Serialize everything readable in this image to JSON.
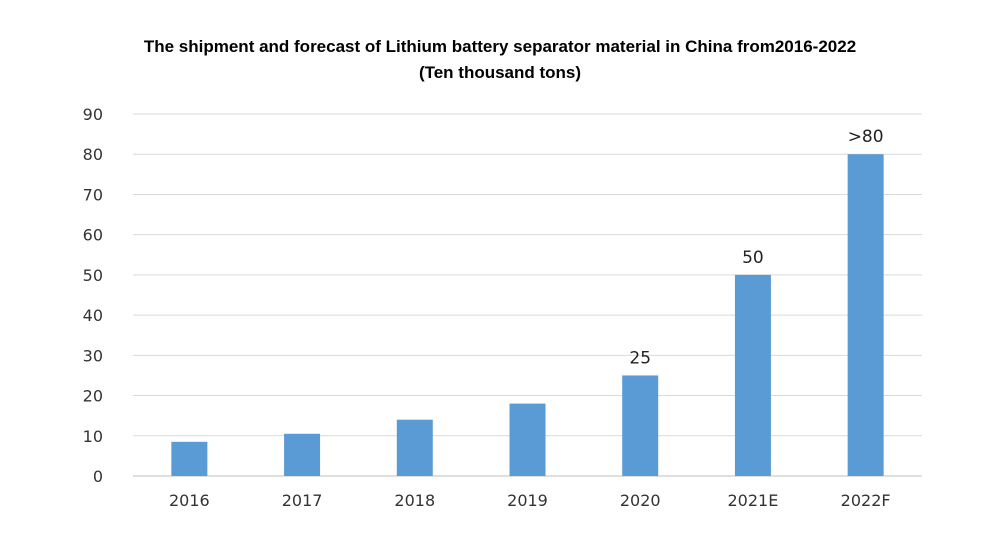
{
  "chart_data": {
    "type": "bar",
    "title": "The shipment and forecast of Lithium battery separator material in China from2016-2022",
    "subtitle": "(Ten thousand tons)",
    "categories": [
      "2016",
      "2017",
      "2018",
      "2019",
      "2020",
      "2021E",
      "2022F"
    ],
    "values": [
      8.5,
      10.5,
      14,
      18,
      25,
      50,
      80
    ],
    "data_labels": [
      "",
      "",
      "",
      "",
      "25",
      "50",
      ">80"
    ],
    "ylim": [
      0,
      90
    ],
    "yticks": [
      0,
      10,
      20,
      30,
      40,
      50,
      60,
      70,
      80,
      90
    ],
    "grid": true,
    "legend": "none",
    "bar_color": "#5b9bd5",
    "grid_color": "#d9d9d9"
  }
}
